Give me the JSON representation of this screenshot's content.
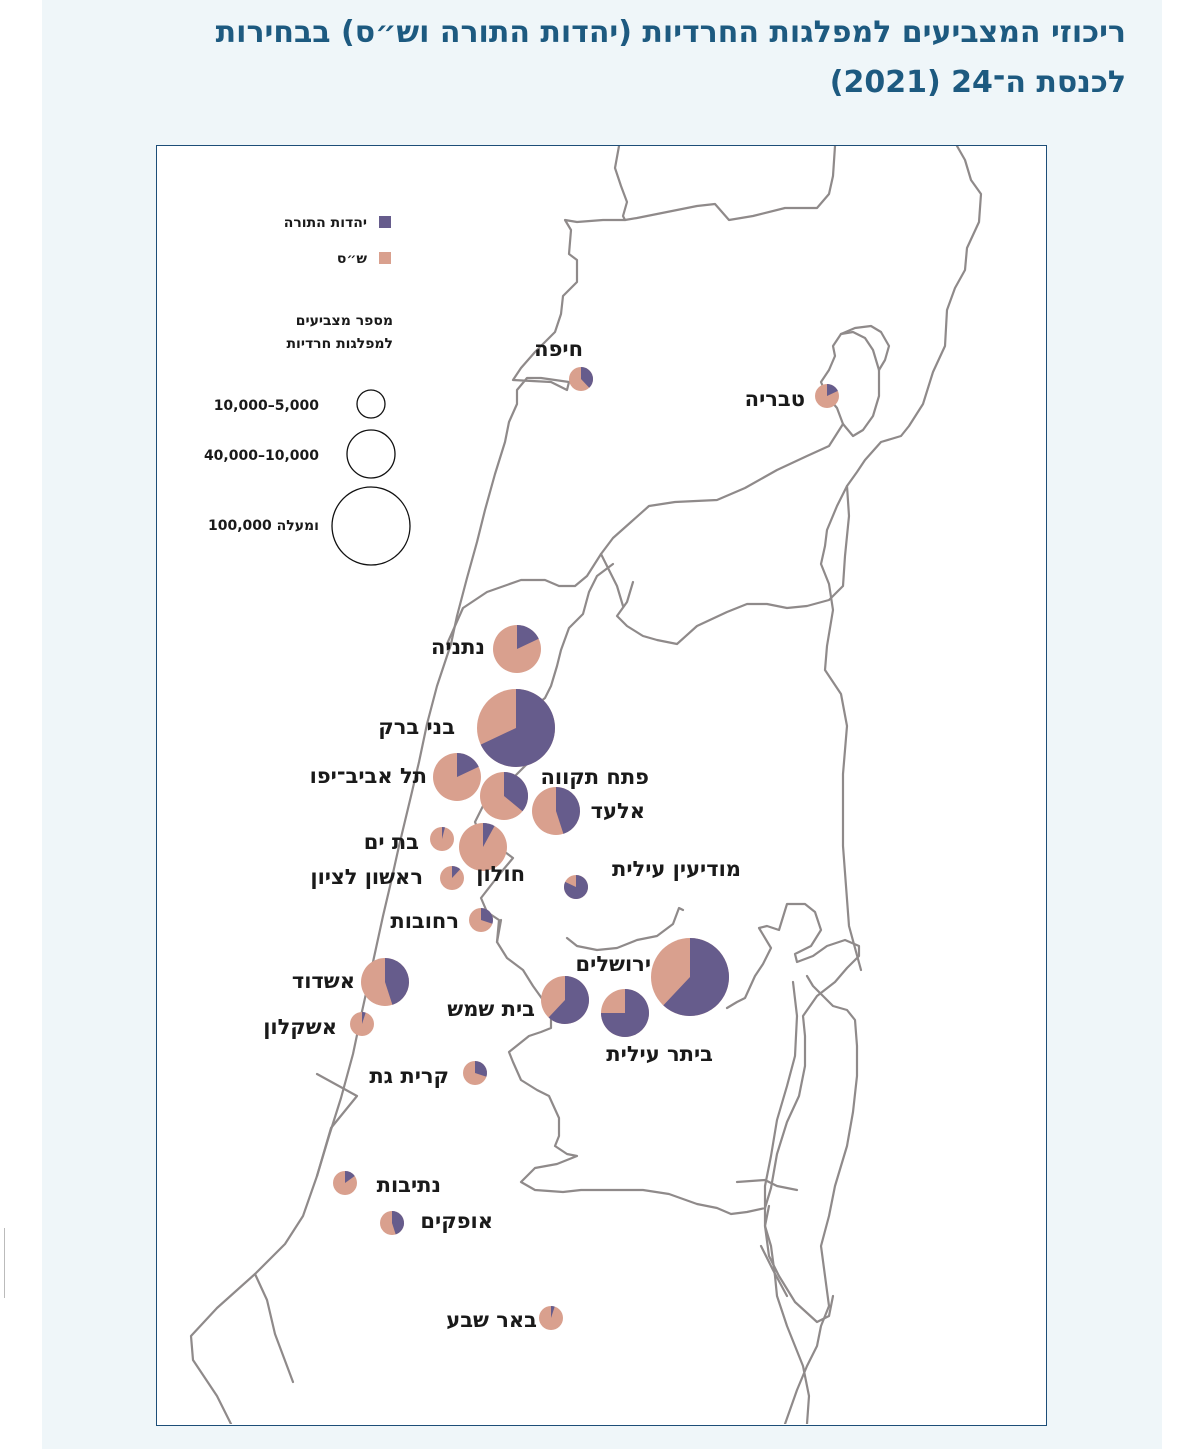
{
  "title": {
    "line1": "ריכוזי המצביעים למפלגות החרדיות (יהדות התורה וש״ס) בבחירות",
    "line2": "לכנסת ה־24 (2021)"
  },
  "colors": {
    "utj": "#665c8c",
    "shas": "#d9a08e",
    "border": "#8f8a8a",
    "title": "#1d5a80",
    "frame": "#1d4e78",
    "panel": "#eff6f9"
  },
  "legend": {
    "series": [
      {
        "key": "utj",
        "label": "יהדות התורה"
      },
      {
        "key": "shas",
        "label": "ש״ס"
      }
    ],
    "size_title_line1": "מספר מצביעים",
    "size_title_line2": "למפלגות חרדיות",
    "sizes": [
      {
        "label": "10,000–5,000",
        "class": "small"
      },
      {
        "label": "40,000–10,000",
        "class": "medium"
      },
      {
        "label": "100,000 ומעלה",
        "class": "large"
      }
    ]
  },
  "cities": [
    {
      "name": "חיפה",
      "size": "small",
      "utj_share": 0.38
    },
    {
      "name": "טבריה",
      "size": "small",
      "utj_share": 0.18
    },
    {
      "name": "נתניה",
      "size": "medium",
      "utj_share": 0.18
    },
    {
      "name": "בני ברק",
      "size": "large",
      "utj_share": 0.68
    },
    {
      "name": "תל אביב־יפו",
      "size": "medium",
      "utj_share": 0.18
    },
    {
      "name": "פתח תקווה",
      "size": "medium",
      "utj_share": 0.36
    },
    {
      "name": "אלעד",
      "size": "medium",
      "utj_share": 0.45
    },
    {
      "name": "בת ים",
      "size": "small",
      "utj_share": 0.04
    },
    {
      "name": "חולון",
      "size": "medium",
      "utj_share": 0.08
    },
    {
      "name": "ראשון לציון",
      "size": "small",
      "utj_share": 0.12
    },
    {
      "name": "מודיעין עילית",
      "size": "small",
      "utj_share": 0.82
    },
    {
      "name": "רחובות",
      "size": "small",
      "utj_share": 0.3
    },
    {
      "name": "ירושלים",
      "size": "large",
      "utj_share": 0.62
    },
    {
      "name": "אשדוד",
      "size": "medium",
      "utj_share": 0.45
    },
    {
      "name": "בית שמש",
      "size": "medium",
      "utj_share": 0.62
    },
    {
      "name": "ביתר עילית",
      "size": "medium",
      "utj_share": 0.75
    },
    {
      "name": "אשקלון",
      "size": "small",
      "utj_share": 0.05
    },
    {
      "name": "קרית גת",
      "size": "small",
      "utj_share": 0.3
    },
    {
      "name": "נתיבות",
      "size": "small",
      "utj_share": 0.15
    },
    {
      "name": "אופקים",
      "size": "small",
      "utj_share": 0.45
    },
    {
      "name": "באר שבע",
      "size": "small",
      "utj_share": 0.05
    }
  ]
}
